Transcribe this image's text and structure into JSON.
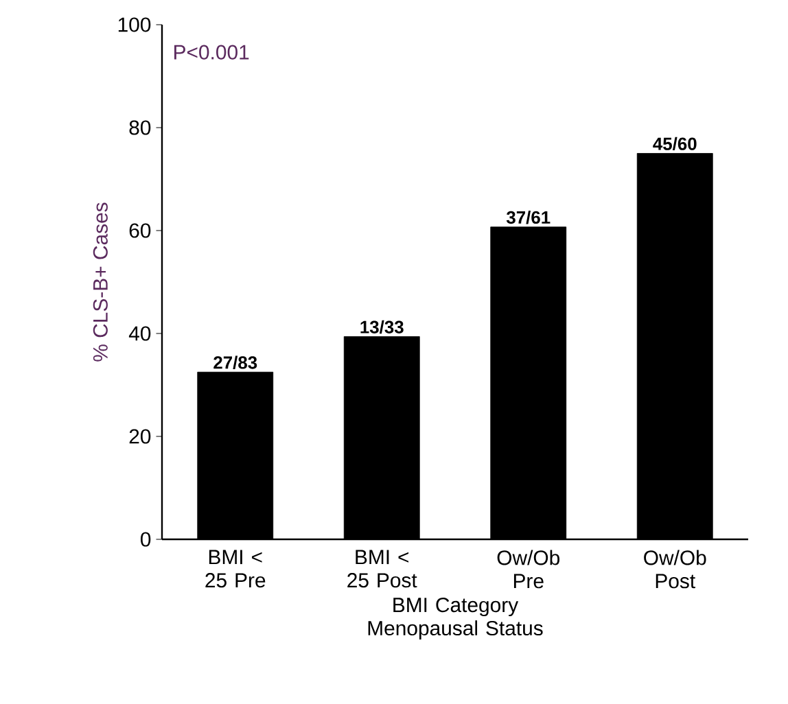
{
  "chart_data": {
    "type": "bar",
    "xlabel": "BMI Category Menopausal Status",
    "ylabel": "% CLS-B+ Cases",
    "categories": [
      "BMI < 25 Pre",
      "BMI < 25 Post",
      "Ow/Ob Pre",
      "Ow/Ob Post"
    ],
    "values": [
      32.5,
      39.4,
      60.7,
      75
    ],
    "value_labels": [
      "27/83",
      "13/33",
      "37/61",
      "45/60"
    ],
    "color": "#000000",
    "ylim": [
      0,
      100
    ],
    "yticks": [
      0,
      20,
      40,
      60,
      80,
      100
    ],
    "annotations": [
      "P<0.001"
    ]
  }
}
